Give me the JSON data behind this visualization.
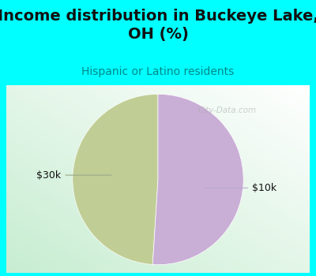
{
  "title": "Income distribution in Buckeye Lake,\nOH (%)",
  "subtitle": "Hispanic or Latino residents",
  "slices": [
    49.0,
    51.0
  ],
  "labels": [
    "$30k",
    "$10k"
  ],
  "colors": [
    "#c0ce96",
    "#c9aed6"
  ],
  "background_color": "#00ffff",
  "title_fontsize": 14,
  "subtitle_fontsize": 10,
  "label_fontsize": 9,
  "startangle": 90,
  "watermark": "City-Data.com"
}
